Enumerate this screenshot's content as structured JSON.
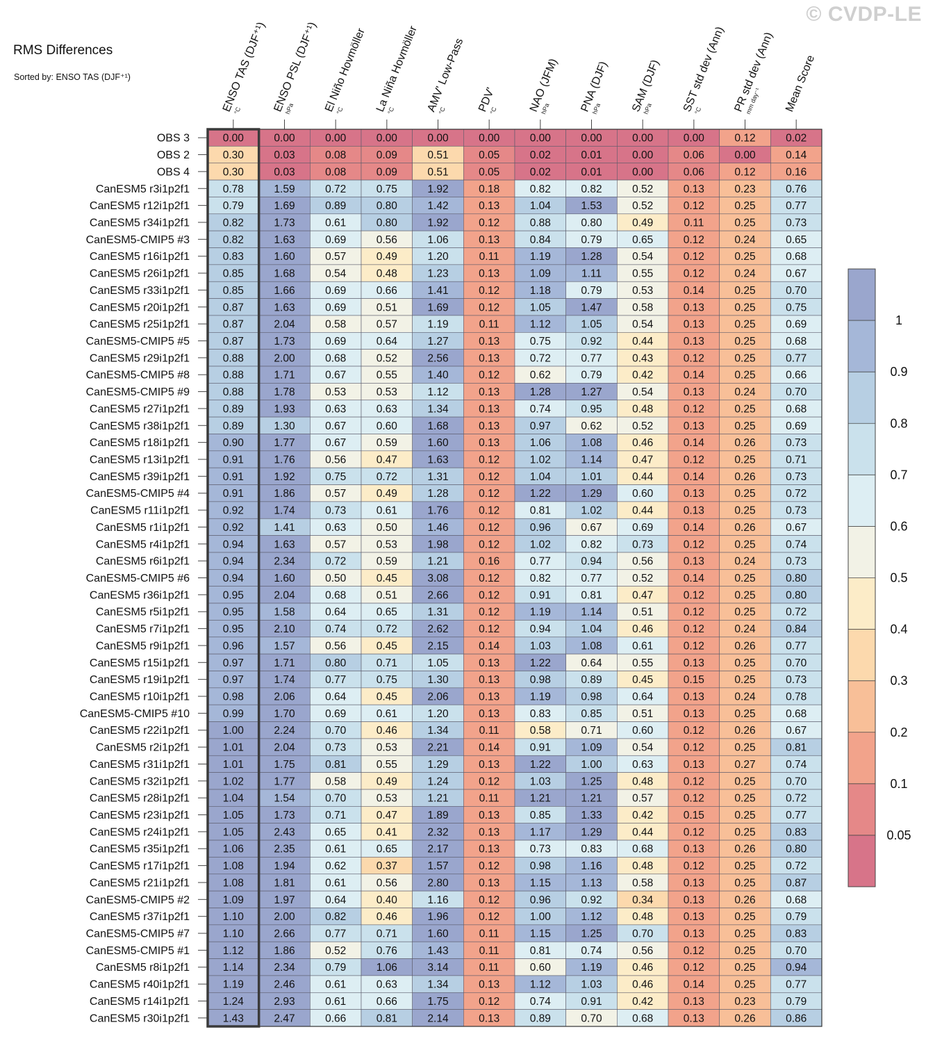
{
  "header": {
    "title": "RMS Differences",
    "subtitle": "Sorted by: ENSO TAS (DJF⁺¹)",
    "watermark": "© CVDP-LE"
  },
  "chart_data": {
    "type": "heatmap",
    "columns": [
      {
        "label": "ENSO TAS (DJF⁺¹)",
        "unit": "°C"
      },
      {
        "label": "ENSO PSL (DJF⁺¹)",
        "unit": "hPa"
      },
      {
        "label": "El Niño Hovmöller",
        "unit": "°C"
      },
      {
        "label": "La Niña Hovmöller",
        "unit": "°C"
      },
      {
        "label": "AMV' Low-Pass",
        "unit": "°C"
      },
      {
        "label": "PDV'",
        "unit": "°C"
      },
      {
        "label": "NAO (JFM)",
        "unit": "hPa"
      },
      {
        "label": "PNA (DJF)",
        "unit": "hPa"
      },
      {
        "label": "SAM (DJF)",
        "unit": "hPa"
      },
      {
        "label": "SST std dev (Ann)",
        "unit": "°C"
      },
      {
        "label": "PR std dev (Ann)",
        "unit": "mm day⁻¹"
      },
      {
        "label": "Mean Score",
        "unit": ""
      }
    ],
    "sorted_column": 0,
    "rows": [
      {
        "name": "OBS 3",
        "values": [
          "0.00",
          "0.00",
          "0.00",
          "0.00",
          "0.00",
          "0.00",
          "0.00",
          "0.00",
          "0.00",
          "0.00",
          "0.12",
          "0.02"
        ]
      },
      {
        "name": "OBS 2",
        "values": [
          "0.30",
          "0.03",
          "0.08",
          "0.09",
          "0.51",
          "0.05",
          "0.02",
          "0.01",
          "0.00",
          "0.06",
          "0.00",
          "0.14"
        ]
      },
      {
        "name": "OBS 4",
        "values": [
          "0.30",
          "0.03",
          "0.08",
          "0.09",
          "0.51",
          "0.05",
          "0.02",
          "0.01",
          "0.00",
          "0.06",
          "0.12",
          "0.16"
        ]
      },
      {
        "name": "CanESM5 r3i1p2f1",
        "values": [
          "0.78",
          "1.59",
          "0.72",
          "0.75",
          "1.92",
          "0.18",
          "0.82",
          "0.82",
          "0.52",
          "0.13",
          "0.23",
          "0.76"
        ]
      },
      {
        "name": "CanESM5 r12i1p2f1",
        "values": [
          "0.79",
          "1.69",
          "0.89",
          "0.80",
          "1.42",
          "0.13",
          "1.04",
          "1.53",
          "0.52",
          "0.12",
          "0.25",
          "0.77"
        ]
      },
      {
        "name": "CanESM5 r34i1p2f1",
        "values": [
          "0.82",
          "1.73",
          "0.61",
          "0.80",
          "1.92",
          "0.12",
          "0.88",
          "0.80",
          "0.49",
          "0.11",
          "0.25",
          "0.73"
        ]
      },
      {
        "name": "CanESM5-CMIP5 #3",
        "values": [
          "0.82",
          "1.63",
          "0.69",
          "0.56",
          "1.06",
          "0.13",
          "0.84",
          "0.79",
          "0.65",
          "0.12",
          "0.24",
          "0.65"
        ]
      },
      {
        "name": "CanESM5 r16i1p2f1",
        "values": [
          "0.83",
          "1.60",
          "0.57",
          "0.49",
          "1.20",
          "0.11",
          "1.19",
          "1.28",
          "0.54",
          "0.12",
          "0.25",
          "0.68"
        ]
      },
      {
        "name": "CanESM5 r26i1p2f1",
        "values": [
          "0.85",
          "1.68",
          "0.54",
          "0.48",
          "1.23",
          "0.13",
          "1.09",
          "1.11",
          "0.55",
          "0.12",
          "0.24",
          "0.67"
        ]
      },
      {
        "name": "CanESM5 r33i1p2f1",
        "values": [
          "0.85",
          "1.66",
          "0.69",
          "0.66",
          "1.41",
          "0.12",
          "1.18",
          "0.79",
          "0.53",
          "0.14",
          "0.25",
          "0.70"
        ]
      },
      {
        "name": "CanESM5 r20i1p2f1",
        "values": [
          "0.87",
          "1.63",
          "0.69",
          "0.51",
          "1.69",
          "0.12",
          "1.05",
          "1.47",
          "0.58",
          "0.13",
          "0.25",
          "0.75"
        ]
      },
      {
        "name": "CanESM5 r25i1p2f1",
        "values": [
          "0.87",
          "2.04",
          "0.58",
          "0.57",
          "1.19",
          "0.11",
          "1.12",
          "1.05",
          "0.54",
          "0.13",
          "0.25",
          "0.69"
        ]
      },
      {
        "name": "CanESM5-CMIP5 #5",
        "values": [
          "0.87",
          "1.73",
          "0.69",
          "0.64",
          "1.27",
          "0.13",
          "0.75",
          "0.92",
          "0.44",
          "0.13",
          "0.25",
          "0.68"
        ]
      },
      {
        "name": "CanESM5 r29i1p2f1",
        "values": [
          "0.88",
          "2.00",
          "0.68",
          "0.52",
          "2.56",
          "0.13",
          "0.72",
          "0.77",
          "0.43",
          "0.12",
          "0.25",
          "0.77"
        ]
      },
      {
        "name": "CanESM5-CMIP5 #8",
        "values": [
          "0.88",
          "1.71",
          "0.67",
          "0.55",
          "1.40",
          "0.12",
          "0.62",
          "0.79",
          "0.42",
          "0.14",
          "0.25",
          "0.66"
        ]
      },
      {
        "name": "CanESM5-CMIP5 #9",
        "values": [
          "0.88",
          "1.78",
          "0.53",
          "0.53",
          "1.12",
          "0.13",
          "1.28",
          "1.27",
          "0.54",
          "0.13",
          "0.24",
          "0.70"
        ]
      },
      {
        "name": "CanESM5 r27i1p2f1",
        "values": [
          "0.89",
          "1.93",
          "0.63",
          "0.63",
          "1.34",
          "0.13",
          "0.74",
          "0.95",
          "0.48",
          "0.12",
          "0.25",
          "0.68"
        ]
      },
      {
        "name": "CanESM5 r38i1p2f1",
        "values": [
          "0.89",
          "1.30",
          "0.67",
          "0.60",
          "1.68",
          "0.13",
          "0.97",
          "0.62",
          "0.52",
          "0.13",
          "0.25",
          "0.69"
        ]
      },
      {
        "name": "CanESM5 r18i1p2f1",
        "values": [
          "0.90",
          "1.77",
          "0.67",
          "0.59",
          "1.60",
          "0.13",
          "1.06",
          "1.08",
          "0.46",
          "0.14",
          "0.26",
          "0.73"
        ]
      },
      {
        "name": "CanESM5 r13i1p2f1",
        "values": [
          "0.91",
          "1.76",
          "0.56",
          "0.47",
          "1.63",
          "0.12",
          "1.02",
          "1.14",
          "0.47",
          "0.12",
          "0.25",
          "0.71"
        ]
      },
      {
        "name": "CanESM5 r39i1p2f1",
        "values": [
          "0.91",
          "1.92",
          "0.75",
          "0.72",
          "1.31",
          "0.12",
          "1.04",
          "1.01",
          "0.44",
          "0.14",
          "0.26",
          "0.73"
        ]
      },
      {
        "name": "CanESM5-CMIP5 #4",
        "values": [
          "0.91",
          "1.86",
          "0.57",
          "0.49",
          "1.28",
          "0.12",
          "1.22",
          "1.29",
          "0.60",
          "0.13",
          "0.25",
          "0.72"
        ]
      },
      {
        "name": "CanESM5 r11i1p2f1",
        "values": [
          "0.92",
          "1.74",
          "0.73",
          "0.61",
          "1.76",
          "0.12",
          "0.81",
          "1.02",
          "0.44",
          "0.13",
          "0.25",
          "0.73"
        ]
      },
      {
        "name": "CanESM5 r1i1p2f1",
        "values": [
          "0.92",
          "1.41",
          "0.63",
          "0.50",
          "1.46",
          "0.12",
          "0.96",
          "0.67",
          "0.69",
          "0.14",
          "0.26",
          "0.67"
        ]
      },
      {
        "name": "CanESM5 r4i1p2f1",
        "values": [
          "0.94",
          "1.63",
          "0.57",
          "0.53",
          "1.98",
          "0.12",
          "1.02",
          "0.82",
          "0.73",
          "0.12",
          "0.25",
          "0.74"
        ]
      },
      {
        "name": "CanESM5 r6i1p2f1",
        "values": [
          "0.94",
          "2.34",
          "0.72",
          "0.59",
          "1.21",
          "0.16",
          "0.77",
          "0.94",
          "0.56",
          "0.13",
          "0.24",
          "0.73"
        ]
      },
      {
        "name": "CanESM5-CMIP5 #6",
        "values": [
          "0.94",
          "1.60",
          "0.50",
          "0.45",
          "3.08",
          "0.12",
          "0.82",
          "0.77",
          "0.52",
          "0.14",
          "0.25",
          "0.80"
        ]
      },
      {
        "name": "CanESM5 r36i1p2f1",
        "values": [
          "0.95",
          "2.04",
          "0.68",
          "0.51",
          "2.66",
          "0.12",
          "0.91",
          "0.81",
          "0.47",
          "0.12",
          "0.25",
          "0.80"
        ]
      },
      {
        "name": "CanESM5 r5i1p2f1",
        "values": [
          "0.95",
          "1.58",
          "0.64",
          "0.65",
          "1.31",
          "0.12",
          "1.19",
          "1.14",
          "0.51",
          "0.12",
          "0.25",
          "0.72"
        ]
      },
      {
        "name": "CanESM5 r7i1p2f1",
        "values": [
          "0.95",
          "2.10",
          "0.74",
          "0.72",
          "2.62",
          "0.12",
          "0.94",
          "1.04",
          "0.46",
          "0.12",
          "0.24",
          "0.84"
        ]
      },
      {
        "name": "CanESM5 r9i1p2f1",
        "values": [
          "0.96",
          "1.57",
          "0.56",
          "0.45",
          "2.15",
          "0.14",
          "1.03",
          "1.08",
          "0.61",
          "0.12",
          "0.26",
          "0.77"
        ]
      },
      {
        "name": "CanESM5 r15i1p2f1",
        "values": [
          "0.97",
          "1.71",
          "0.80",
          "0.71",
          "1.05",
          "0.13",
          "1.22",
          "0.64",
          "0.55",
          "0.13",
          "0.25",
          "0.70"
        ]
      },
      {
        "name": "CanESM5 r19i1p2f1",
        "values": [
          "0.97",
          "1.74",
          "0.77",
          "0.75",
          "1.30",
          "0.13",
          "0.98",
          "0.89",
          "0.45",
          "0.15",
          "0.25",
          "0.73"
        ]
      },
      {
        "name": "CanESM5 r10i1p2f1",
        "values": [
          "0.98",
          "2.06",
          "0.64",
          "0.45",
          "2.06",
          "0.13",
          "1.19",
          "0.98",
          "0.64",
          "0.13",
          "0.24",
          "0.78"
        ]
      },
      {
        "name": "CanESM5-CMIP5 #10",
        "values": [
          "0.99",
          "1.70",
          "0.69",
          "0.61",
          "1.20",
          "0.13",
          "0.83",
          "0.85",
          "0.51",
          "0.13",
          "0.25",
          "0.68"
        ]
      },
      {
        "name": "CanESM5 r22i1p2f1",
        "values": [
          "1.00",
          "2.24",
          "0.70",
          "0.46",
          "1.34",
          "0.11",
          "0.58",
          "0.71",
          "0.60",
          "0.12",
          "0.26",
          "0.67"
        ]
      },
      {
        "name": "CanESM5 r2i1p2f1",
        "values": [
          "1.01",
          "2.04",
          "0.73",
          "0.53",
          "2.21",
          "0.14",
          "0.91",
          "1.09",
          "0.54",
          "0.12",
          "0.25",
          "0.81"
        ]
      },
      {
        "name": "CanESM5 r31i1p2f1",
        "values": [
          "1.01",
          "1.75",
          "0.81",
          "0.55",
          "1.29",
          "0.13",
          "1.22",
          "1.00",
          "0.63",
          "0.13",
          "0.27",
          "0.74"
        ]
      },
      {
        "name": "CanESM5 r32i1p2f1",
        "values": [
          "1.02",
          "1.77",
          "0.58",
          "0.49",
          "1.24",
          "0.12",
          "1.03",
          "1.25",
          "0.48",
          "0.12",
          "0.25",
          "0.70"
        ]
      },
      {
        "name": "CanESM5 r28i1p2f1",
        "values": [
          "1.04",
          "1.54",
          "0.70",
          "0.53",
          "1.21",
          "0.11",
          "1.21",
          "1.21",
          "0.57",
          "0.12",
          "0.25",
          "0.72"
        ]
      },
      {
        "name": "CanESM5 r23i1p2f1",
        "values": [
          "1.05",
          "1.73",
          "0.71",
          "0.47",
          "1.89",
          "0.13",
          "0.85",
          "1.33",
          "0.42",
          "0.15",
          "0.25",
          "0.77"
        ]
      },
      {
        "name": "CanESM5 r24i1p2f1",
        "values": [
          "1.05",
          "2.43",
          "0.65",
          "0.41",
          "2.32",
          "0.13",
          "1.17",
          "1.29",
          "0.44",
          "0.12",
          "0.25",
          "0.83"
        ]
      },
      {
        "name": "CanESM5 r35i1p2f1",
        "values": [
          "1.06",
          "2.35",
          "0.61",
          "0.65",
          "2.17",
          "0.13",
          "0.73",
          "0.83",
          "0.68",
          "0.13",
          "0.26",
          "0.80"
        ]
      },
      {
        "name": "CanESM5 r17i1p2f1",
        "values": [
          "1.08",
          "1.94",
          "0.62",
          "0.37",
          "1.57",
          "0.12",
          "0.98",
          "1.16",
          "0.48",
          "0.12",
          "0.25",
          "0.72"
        ]
      },
      {
        "name": "CanESM5 r21i1p2f1",
        "values": [
          "1.08",
          "1.81",
          "0.61",
          "0.56",
          "2.80",
          "0.13",
          "1.15",
          "1.13",
          "0.58",
          "0.13",
          "0.25",
          "0.87"
        ]
      },
      {
        "name": "CanESM5-CMIP5 #2",
        "values": [
          "1.09",
          "1.97",
          "0.64",
          "0.40",
          "1.16",
          "0.12",
          "0.96",
          "0.92",
          "0.34",
          "0.13",
          "0.26",
          "0.68"
        ]
      },
      {
        "name": "CanESM5 r37i1p2f1",
        "values": [
          "1.10",
          "2.00",
          "0.82",
          "0.46",
          "1.96",
          "0.12",
          "1.00",
          "1.12",
          "0.48",
          "0.13",
          "0.25",
          "0.79"
        ]
      },
      {
        "name": "CanESM5-CMIP5 #7",
        "values": [
          "1.10",
          "2.66",
          "0.77",
          "0.71",
          "1.60",
          "0.11",
          "1.15",
          "1.25",
          "0.70",
          "0.13",
          "0.25",
          "0.83"
        ]
      },
      {
        "name": "CanESM5-CMIP5 #1",
        "values": [
          "1.12",
          "1.86",
          "0.52",
          "0.76",
          "1.43",
          "0.11",
          "0.81",
          "0.74",
          "0.56",
          "0.12",
          "0.25",
          "0.70"
        ]
      },
      {
        "name": "CanESM5 r8i1p2f1",
        "values": [
          "1.14",
          "2.34",
          "0.79",
          "1.06",
          "3.14",
          "0.11",
          "0.60",
          "1.19",
          "0.46",
          "0.12",
          "0.25",
          "0.94"
        ]
      },
      {
        "name": "CanESM5 r40i1p2f1",
        "values": [
          "1.19",
          "2.46",
          "0.61",
          "0.63",
          "1.34",
          "0.13",
          "1.12",
          "1.03",
          "0.46",
          "0.14",
          "0.25",
          "0.77"
        ]
      },
      {
        "name": "CanESM5 r14i1p2f1",
        "values": [
          "1.24",
          "2.93",
          "0.61",
          "0.66",
          "1.75",
          "0.12",
          "0.74",
          "0.91",
          "0.42",
          "0.13",
          "0.23",
          "0.79"
        ]
      },
      {
        "name": "CanESM5 r30i1p2f1",
        "values": [
          "1.43",
          "2.47",
          "0.66",
          "0.81",
          "2.14",
          "0.13",
          "0.89",
          "0.70",
          "0.68",
          "0.13",
          "0.26",
          "0.86"
        ]
      }
    ],
    "colorbar": {
      "labels": [
        "1",
        "0.9",
        "0.8",
        "0.7",
        "0.6",
        "0.5",
        "0.4",
        "0.3",
        "0.2",
        "0.1",
        "0.05"
      ],
      "colors": [
        "#9aa6cd",
        "#a5b7d8",
        "#b7cfe3",
        "#cae1ec",
        "#ddeef3",
        "#f2f2e6",
        "#fcecc8",
        "#fcd9ad",
        "#f8bf98",
        "#f2a38b",
        "#e58888",
        "#d77489"
      ]
    }
  }
}
